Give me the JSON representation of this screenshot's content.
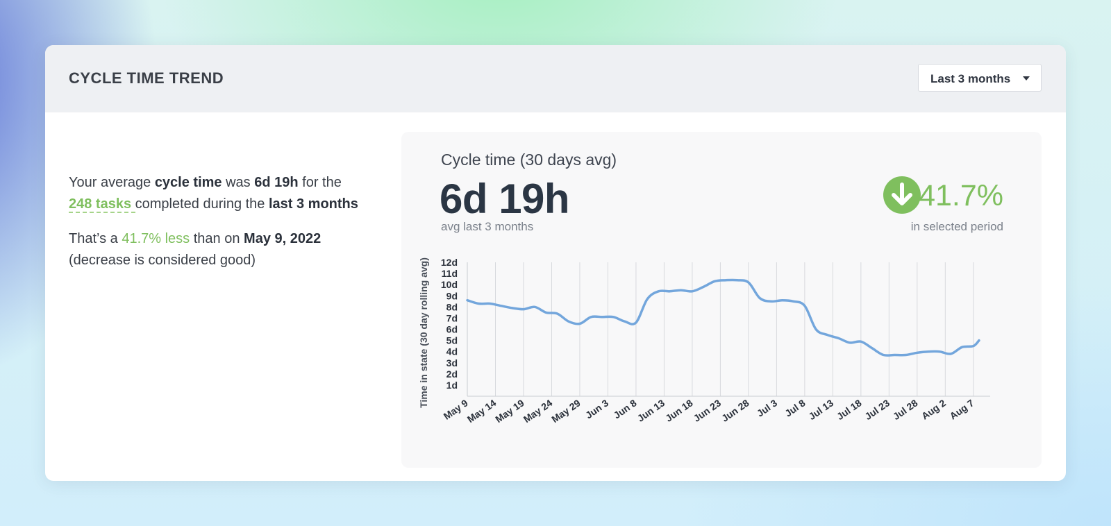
{
  "header": {
    "title": "CYCLE TIME TREND",
    "period_select": "Last 3 months"
  },
  "summary": {
    "line1_pre": "Your average ",
    "line1_bold1": "cycle time",
    "line1_mid": " was ",
    "line1_bold2": "6d 19h",
    "line1_post": " for the ",
    "tasks_link": "248 tasks ",
    "line1_post2": "completed during the ",
    "line1_bold3": "last 3 months",
    "line2_pre": "That’s a ",
    "line2_green": "41.7% less",
    "line2_mid": " than on ",
    "line2_bold": "May 9, 2022",
    "line2_post": "(decrease is considered good)"
  },
  "metric": {
    "label": "Cycle time (30 days avg)",
    "value": "6d 19h",
    "sub": "avg last 3 months",
    "delta": "41.7%",
    "delta_sub": "in selected period",
    "delta_icon": "arrow-down-circle-icon",
    "accent_green": "#7fbf5e"
  },
  "chart_data": {
    "type": "line",
    "ylabel": "Time in state (30 day rolling avg)",
    "y_ticks": [
      "1d",
      "2d",
      "3d",
      "4d",
      "5d",
      "6d",
      "7d",
      "8d",
      "9d",
      "10d",
      "11d",
      "12d"
    ],
    "ylim": [
      0,
      12
    ],
    "x_ticks": [
      "May 9",
      "May 14",
      "May 19",
      "May 24",
      "May 29",
      "Jun 3",
      "Jun 8",
      "Jun 13",
      "Jun 18",
      "Jun 23",
      "Jun 28",
      "Jul 3",
      "Jul 8",
      "Jul 13",
      "Jul 18",
      "Jul 23",
      "Jul 28",
      "Aug 2",
      "Aug 7"
    ],
    "x_day_range": [
      0,
      92
    ],
    "grid": "vertical",
    "line_color": "#73a6dc",
    "series": [
      {
        "points": [
          [
            0,
            8.6
          ],
          [
            2,
            8.3
          ],
          [
            4,
            8.3
          ],
          [
            6,
            8.1
          ],
          [
            8,
            7.9
          ],
          [
            10,
            7.8
          ],
          [
            12,
            8.0
          ],
          [
            14,
            7.5
          ],
          [
            16,
            7.4
          ],
          [
            18,
            6.7
          ],
          [
            20,
            6.5
          ],
          [
            22,
            7.1
          ],
          [
            24,
            7.1
          ],
          [
            26,
            7.1
          ],
          [
            28,
            6.7
          ],
          [
            30,
            6.6
          ],
          [
            32,
            8.7
          ],
          [
            34,
            9.4
          ],
          [
            36,
            9.4
          ],
          [
            38,
            9.5
          ],
          [
            40,
            9.4
          ],
          [
            42,
            9.8
          ],
          [
            44,
            10.3
          ],
          [
            46,
            10.4
          ],
          [
            48,
            10.4
          ],
          [
            50,
            10.2
          ],
          [
            52,
            8.8
          ],
          [
            54,
            8.5
          ],
          [
            56,
            8.6
          ],
          [
            58,
            8.5
          ],
          [
            60,
            8.1
          ],
          [
            62,
            6.0
          ],
          [
            64,
            5.5
          ],
          [
            66,
            5.2
          ],
          [
            68,
            4.8
          ],
          [
            70,
            4.9
          ],
          [
            72,
            4.3
          ],
          [
            74,
            3.7
          ],
          [
            76,
            3.7
          ],
          [
            78,
            3.7
          ],
          [
            80,
            3.9
          ],
          [
            82,
            4.0
          ],
          [
            84,
            4.0
          ],
          [
            86,
            3.8
          ],
          [
            88,
            4.4
          ],
          [
            90,
            4.5
          ],
          [
            91,
            5.0
          ]
        ]
      }
    ]
  }
}
